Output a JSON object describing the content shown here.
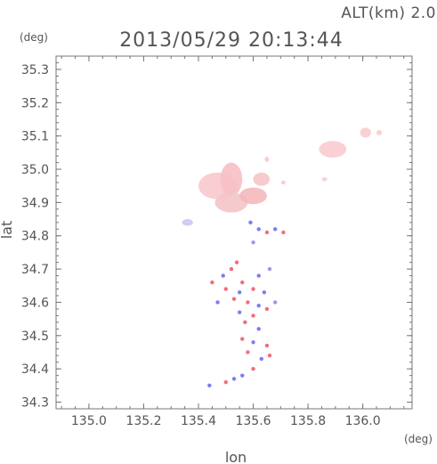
{
  "header": {
    "altitude_label": "ALT(km) 2.0",
    "timestamp": "2013/05/29 20:13:44"
  },
  "chart_data": {
    "type": "scatter",
    "title": "2013/05/29 20:13:44",
    "xlabel": "lon",
    "ylabel": "lat",
    "x_unit": "(deg)",
    "y_unit": "(deg)",
    "xlim": [
      134.88,
      136.18
    ],
    "ylim": [
      34.28,
      35.34
    ],
    "x_ticks": [
      "135.0",
      "135.2",
      "135.4",
      "135.6",
      "135.8",
      "136.0"
    ],
    "y_ticks": [
      "34.3",
      "34.4",
      "34.5",
      "34.6",
      "34.7",
      "34.8",
      "34.9",
      "35.0",
      "35.1",
      "35.2",
      "35.3"
    ],
    "grid": false,
    "colors": {
      "positive_strong": "#ee5566",
      "positive_light": "#f8c8cc",
      "negative_strong": "#6666ee",
      "negative_light": "#c8c8f5",
      "axis": "#777777",
      "text": "#555555"
    },
    "blobs": [
      {
        "lon": 135.47,
        "lat": 34.95,
        "rx": 0.07,
        "ry": 0.04,
        "color": "#f8c8cc"
      },
      {
        "lon": 135.52,
        "lat": 34.97,
        "rx": 0.04,
        "ry": 0.05,
        "color": "#f6c0c4"
      },
      {
        "lon": 135.52,
        "lat": 34.9,
        "rx": 0.06,
        "ry": 0.03,
        "color": "#f4c4c6"
      },
      {
        "lon": 135.6,
        "lat": 34.92,
        "rx": 0.05,
        "ry": 0.025,
        "color": "#f4b8bc"
      },
      {
        "lon": 135.63,
        "lat": 34.97,
        "rx": 0.03,
        "ry": 0.02,
        "color": "#f6c4c6"
      },
      {
        "lon": 135.89,
        "lat": 35.06,
        "rx": 0.05,
        "ry": 0.025,
        "color": "#f8ccd0"
      },
      {
        "lon": 136.01,
        "lat": 35.11,
        "rx": 0.02,
        "ry": 0.015,
        "color": "#f8ccd0"
      },
      {
        "lon": 136.06,
        "lat": 35.11,
        "rx": 0.01,
        "ry": 0.008,
        "color": "#f8ccd0"
      },
      {
        "lon": 135.36,
        "lat": 34.84,
        "rx": 0.02,
        "ry": 0.01,
        "color": "#c8c8f5"
      },
      {
        "lon": 135.65,
        "lat": 35.03,
        "rx": 0.008,
        "ry": 0.008,
        "color": "#f8c8cc"
      },
      {
        "lon": 135.71,
        "lat": 34.96,
        "rx": 0.008,
        "ry": 0.006,
        "color": "#f8c8cc"
      },
      {
        "lon": 135.86,
        "lat": 34.97,
        "rx": 0.01,
        "ry": 0.006,
        "color": "#f8ccd0"
      }
    ],
    "points": [
      {
        "lon": 135.59,
        "lat": 34.84,
        "color": "#6666ee"
      },
      {
        "lon": 135.62,
        "lat": 34.82,
        "color": "#6666ee"
      },
      {
        "lon": 135.65,
        "lat": 34.81,
        "color": "#ee5566"
      },
      {
        "lon": 135.68,
        "lat": 34.82,
        "color": "#6666ee"
      },
      {
        "lon": 135.6,
        "lat": 34.78,
        "color": "#8888ee"
      },
      {
        "lon": 135.71,
        "lat": 34.81,
        "color": "#ee5566"
      },
      {
        "lon": 135.54,
        "lat": 34.72,
        "color": "#ee5566"
      },
      {
        "lon": 135.52,
        "lat": 34.7,
        "color": "#ee5566"
      },
      {
        "lon": 135.49,
        "lat": 34.68,
        "color": "#6666ee"
      },
      {
        "lon": 135.56,
        "lat": 34.66,
        "color": "#ee5566"
      },
      {
        "lon": 135.62,
        "lat": 34.68,
        "color": "#6666ee"
      },
      {
        "lon": 135.5,
        "lat": 34.64,
        "color": "#ee5566"
      },
      {
        "lon": 135.55,
        "lat": 34.63,
        "color": "#6666ee"
      },
      {
        "lon": 135.6,
        "lat": 34.64,
        "color": "#ee5566"
      },
      {
        "lon": 135.64,
        "lat": 34.63,
        "color": "#6666ee"
      },
      {
        "lon": 135.53,
        "lat": 34.61,
        "color": "#ee5566"
      },
      {
        "lon": 135.58,
        "lat": 34.6,
        "color": "#ee5566"
      },
      {
        "lon": 135.62,
        "lat": 34.59,
        "color": "#6666ee"
      },
      {
        "lon": 135.47,
        "lat": 34.6,
        "color": "#6666ee"
      },
      {
        "lon": 135.55,
        "lat": 34.57,
        "color": "#6666ee"
      },
      {
        "lon": 135.6,
        "lat": 34.56,
        "color": "#ee5566"
      },
      {
        "lon": 135.65,
        "lat": 34.58,
        "color": "#ee5566"
      },
      {
        "lon": 135.57,
        "lat": 34.54,
        "color": "#ee5566"
      },
      {
        "lon": 135.62,
        "lat": 34.52,
        "color": "#6666ee"
      },
      {
        "lon": 135.56,
        "lat": 34.49,
        "color": "#ee5566"
      },
      {
        "lon": 135.6,
        "lat": 34.48,
        "color": "#6666ee"
      },
      {
        "lon": 135.65,
        "lat": 34.47,
        "color": "#ee5566"
      },
      {
        "lon": 135.58,
        "lat": 34.45,
        "color": "#ee5566"
      },
      {
        "lon": 135.63,
        "lat": 34.43,
        "color": "#6666ee"
      },
      {
        "lon": 135.66,
        "lat": 34.44,
        "color": "#ee5566"
      },
      {
        "lon": 135.6,
        "lat": 34.4,
        "color": "#ee5566"
      },
      {
        "lon": 135.56,
        "lat": 34.38,
        "color": "#6666ee"
      },
      {
        "lon": 135.5,
        "lat": 34.36,
        "color": "#ee5566"
      },
      {
        "lon": 135.44,
        "lat": 34.35,
        "color": "#6666ee"
      },
      {
        "lon": 135.53,
        "lat": 34.37,
        "color": "#6666ee"
      },
      {
        "lon": 135.68,
        "lat": 34.6,
        "color": "#8888ee"
      },
      {
        "lon": 135.45,
        "lat": 34.66,
        "color": "#ee5566"
      },
      {
        "lon": 135.66,
        "lat": 34.7,
        "color": "#8888ee"
      }
    ]
  }
}
